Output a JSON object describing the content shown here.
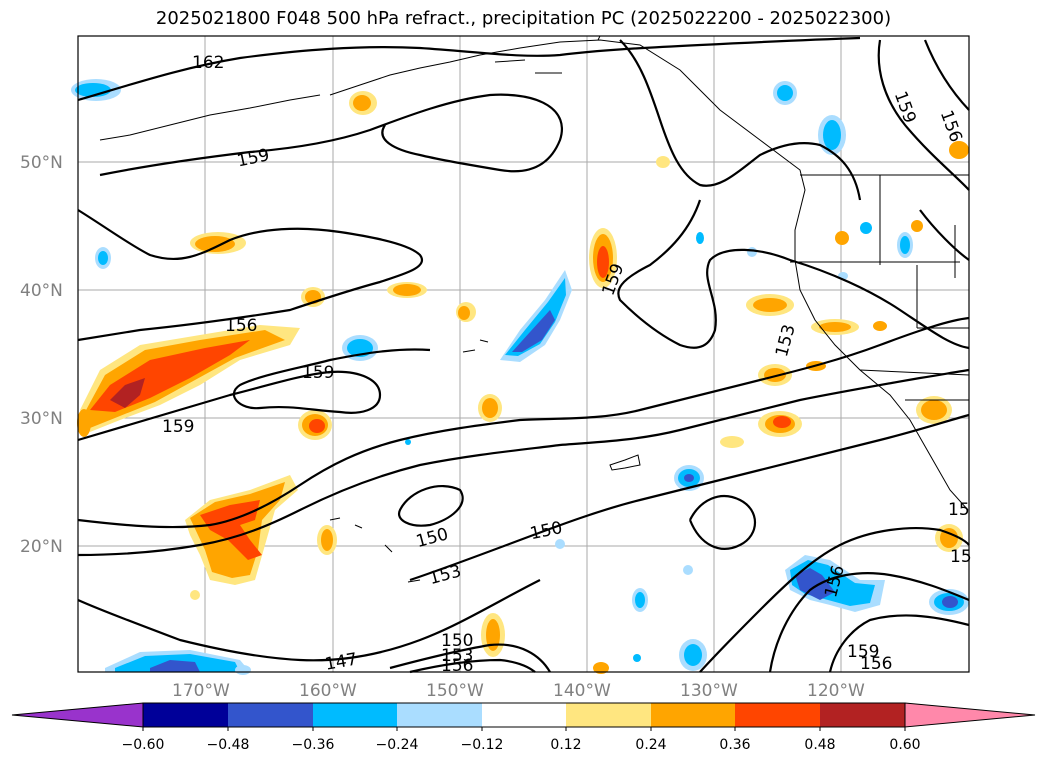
{
  "title": "2025021800 F048 500 hPa refract., precipitation PC (2025022200 - 2025022300)",
  "map": {
    "lat_labels": [
      "50°N",
      "40°N",
      "30°N",
      "20°N"
    ],
    "lon_labels": [
      "170°W",
      "160°W",
      "150°W",
      "140°W",
      "130°W",
      "120°W"
    ],
    "contour_labels": [
      "162",
      "159",
      "159",
      "156",
      "159",
      "159",
      "156",
      "159",
      "153",
      "150",
      "150",
      "153",
      "150",
      "153",
      "147",
      "156",
      "156",
      "159",
      "156",
      "15",
      "15"
    ]
  },
  "colorbar": {
    "ticks": [
      "−0.60",
      "−0.48",
      "−0.36",
      "−0.24",
      "−0.12",
      "0.12",
      "0.24",
      "0.36",
      "0.48",
      "0.60"
    ],
    "colors": [
      "#9933cc",
      "#000099",
      "#3355cc",
      "#00bbff",
      "#aaddff",
      "#ffffff",
      "#ffe680",
      "#ffa500",
      "#ff4500",
      "#b22222",
      "#ff88aa"
    ]
  }
}
